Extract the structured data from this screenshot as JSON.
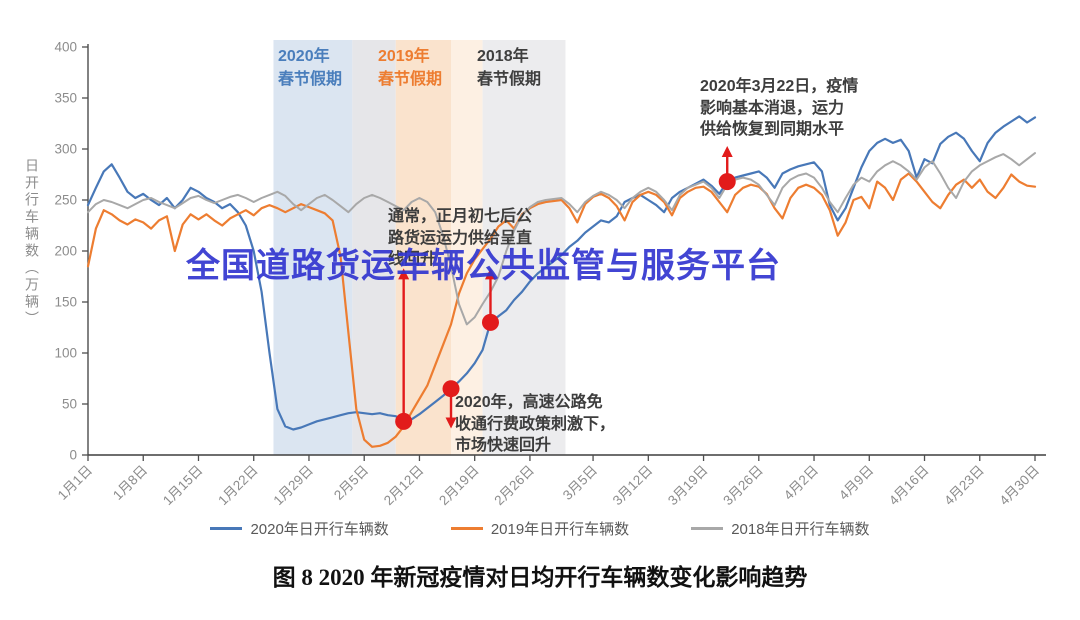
{
  "watermark": {
    "text": "全国道路货运车辆公共监管与服务平台",
    "color": "#3236d0"
  },
  "caption": "图 8 2020 年新冠疫情对日均开行车辆数变化影响趋势",
  "band_labels": [
    {
      "text": "2020年\n春节假期",
      "color": "#4a7ebc"
    },
    {
      "text": "2019年\n春节假期",
      "color": "#ed7d31"
    },
    {
      "text": "2018年\n春节假期",
      "color": "#3f3f3f"
    }
  ],
  "holiday_bands": [
    {
      "name": "2020-spring-festival",
      "from_day": 23.5,
      "to_day": 33.5,
      "color": "#dbe5f1"
    },
    {
      "name": "gap-band",
      "from_day": 33.5,
      "to_day": 39.0,
      "color": "#e6e6e9"
    },
    {
      "name": "2019-spring-festival",
      "from_day": 39.0,
      "to_day": 46.0,
      "color": "#fae3cd"
    },
    {
      "name": "2019-spring-festival-light",
      "from_day": 46.0,
      "to_day": 50.0,
      "color": "#fdf0e3"
    },
    {
      "name": "2018-spring-festival",
      "from_day": 50.0,
      "to_day": 60.5,
      "color": "#ececee"
    }
  ],
  "annotations": [
    {
      "id": "march22",
      "text": "2020年3月22日，疫情\n影响基本消退，运力\n供给恢复到同期水平"
    },
    {
      "id": "usually-rebound",
      "text": "通常，正月初七后公\n路货运运力供给呈直\n线回升"
    },
    {
      "id": "toll-free",
      "text": "2020年，高速公路免\n收通行费政策刺激下，\n市场快速回升"
    }
  ],
  "chart_data": {
    "type": "line",
    "title": "",
    "ylabel": "日开行车辆数（万辆）",
    "ylim": [
      0,
      400
    ],
    "y_ticks": [
      0,
      50,
      100,
      150,
      200,
      250,
      300,
      350,
      400
    ],
    "x_tick_labels": [
      "1月1日",
      "1月8日",
      "1月15日",
      "1月22日",
      "1月29日",
      "2月5日",
      "2月12日",
      "2月19日",
      "2月26日",
      "3月5日",
      "3月12日",
      "3月19日",
      "3月26日",
      "4月2日",
      "4月9日",
      "4月16日",
      "4月23日",
      "4月30日"
    ],
    "x_tick_days": [
      0,
      7,
      14,
      21,
      28,
      35,
      42,
      49,
      56,
      64,
      71,
      78,
      85,
      92,
      99,
      106,
      113,
      120
    ],
    "days_total": 120,
    "marker_color": "#e21b1b",
    "markers": [
      {
        "day": 40,
        "value": 33,
        "arrow_to": 183
      },
      {
        "day": 46,
        "value": 65,
        "arrow_to": 26
      },
      {
        "day": 51,
        "value": 130,
        "arrow_to": 183
      },
      {
        "day": 81,
        "value": 268,
        "arrow_to": 303
      }
    ],
    "series": [
      {
        "name": "2020年日开行车辆数",
        "color": "#4878b8",
        "values": [
          245,
          262,
          278,
          285,
          272,
          258,
          252,
          256,
          250,
          245,
          252,
          242,
          250,
          262,
          258,
          252,
          248,
          242,
          246,
          238,
          225,
          200,
          160,
          100,
          45,
          28,
          25,
          27,
          30,
          33,
          35,
          37,
          39,
          41,
          42,
          41,
          40,
          41,
          39,
          38,
          33,
          35,
          40,
          46,
          52,
          58,
          65,
          72,
          80,
          90,
          103,
          130,
          136,
          142,
          152,
          160,
          170,
          178,
          184,
          190,
          196,
          204,
          210,
          218,
          224,
          230,
          228,
          234,
          248,
          252,
          255,
          250,
          245,
          238,
          252,
          258,
          262,
          266,
          270,
          264,
          256,
          268,
          272,
          274,
          276,
          278,
          272,
          262,
          276,
          280,
          283,
          285,
          287,
          278,
          245,
          230,
          242,
          262,
          282,
          298,
          306,
          310,
          306,
          309,
          298,
          272,
          290,
          286,
          305,
          312,
          316,
          310,
          298,
          288,
          306,
          316,
          322,
          327,
          332,
          326,
          331
        ]
      },
      {
        "name": "2019年日开行车辆数",
        "color": "#ed7d31",
        "values": [
          185,
          222,
          240,
          236,
          230,
          226,
          231,
          228,
          222,
          230,
          234,
          200,
          226,
          236,
          231,
          236,
          230,
          225,
          232,
          236,
          240,
          235,
          242,
          245,
          242,
          238,
          242,
          246,
          243,
          240,
          237,
          230,
          195,
          120,
          45,
          15,
          8,
          9,
          12,
          18,
          28,
          42,
          55,
          68,
          88,
          108,
          128,
          158,
          178,
          192,
          202,
          212,
          224,
          230,
          222,
          236,
          242,
          246,
          248,
          249,
          250,
          242,
          228,
          246,
          253,
          256,
          252,
          244,
          230,
          248,
          255,
          258,
          255,
          248,
          235,
          252,
          258,
          262,
          263,
          258,
          248,
          238,
          255,
          262,
          265,
          263,
          256,
          242,
          232,
          252,
          262,
          265,
          262,
          255,
          240,
          215,
          228,
          250,
          253,
          242,
          268,
          262,
          250,
          270,
          276,
          268,
          258,
          248,
          242,
          255,
          265,
          270,
          262,
          270,
          258,
          252,
          262,
          275,
          268,
          264,
          263
        ]
      },
      {
        "name": "2018年日开行车辆数",
        "color": "#a8a8a8",
        "values": [
          238,
          246,
          250,
          248,
          245,
          242,
          246,
          250,
          252,
          248,
          245,
          242,
          247,
          252,
          254,
          250,
          247,
          250,
          253,
          255,
          252,
          248,
          252,
          255,
          258,
          254,
          246,
          240,
          246,
          252,
          255,
          250,
          244,
          238,
          246,
          252,
          255,
          252,
          248,
          244,
          240,
          248,
          252,
          248,
          238,
          215,
          185,
          148,
          128,
          135,
          148,
          160,
          175,
          200,
          220,
          235,
          243,
          248,
          250,
          251,
          252,
          246,
          238,
          248,
          254,
          258,
          255,
          250,
          242,
          252,
          258,
          262,
          258,
          250,
          240,
          255,
          262,
          265,
          268,
          262,
          252,
          265,
          270,
          272,
          270,
          265,
          255,
          245,
          262,
          270,
          274,
          276,
          272,
          262,
          248,
          238,
          252,
          265,
          272,
          268,
          278,
          284,
          288,
          284,
          278,
          270,
          282,
          288,
          276,
          262,
          252,
          268,
          278,
          284,
          288,
          292,
          295,
          290,
          284,
          290,
          296
        ]
      }
    ]
  }
}
